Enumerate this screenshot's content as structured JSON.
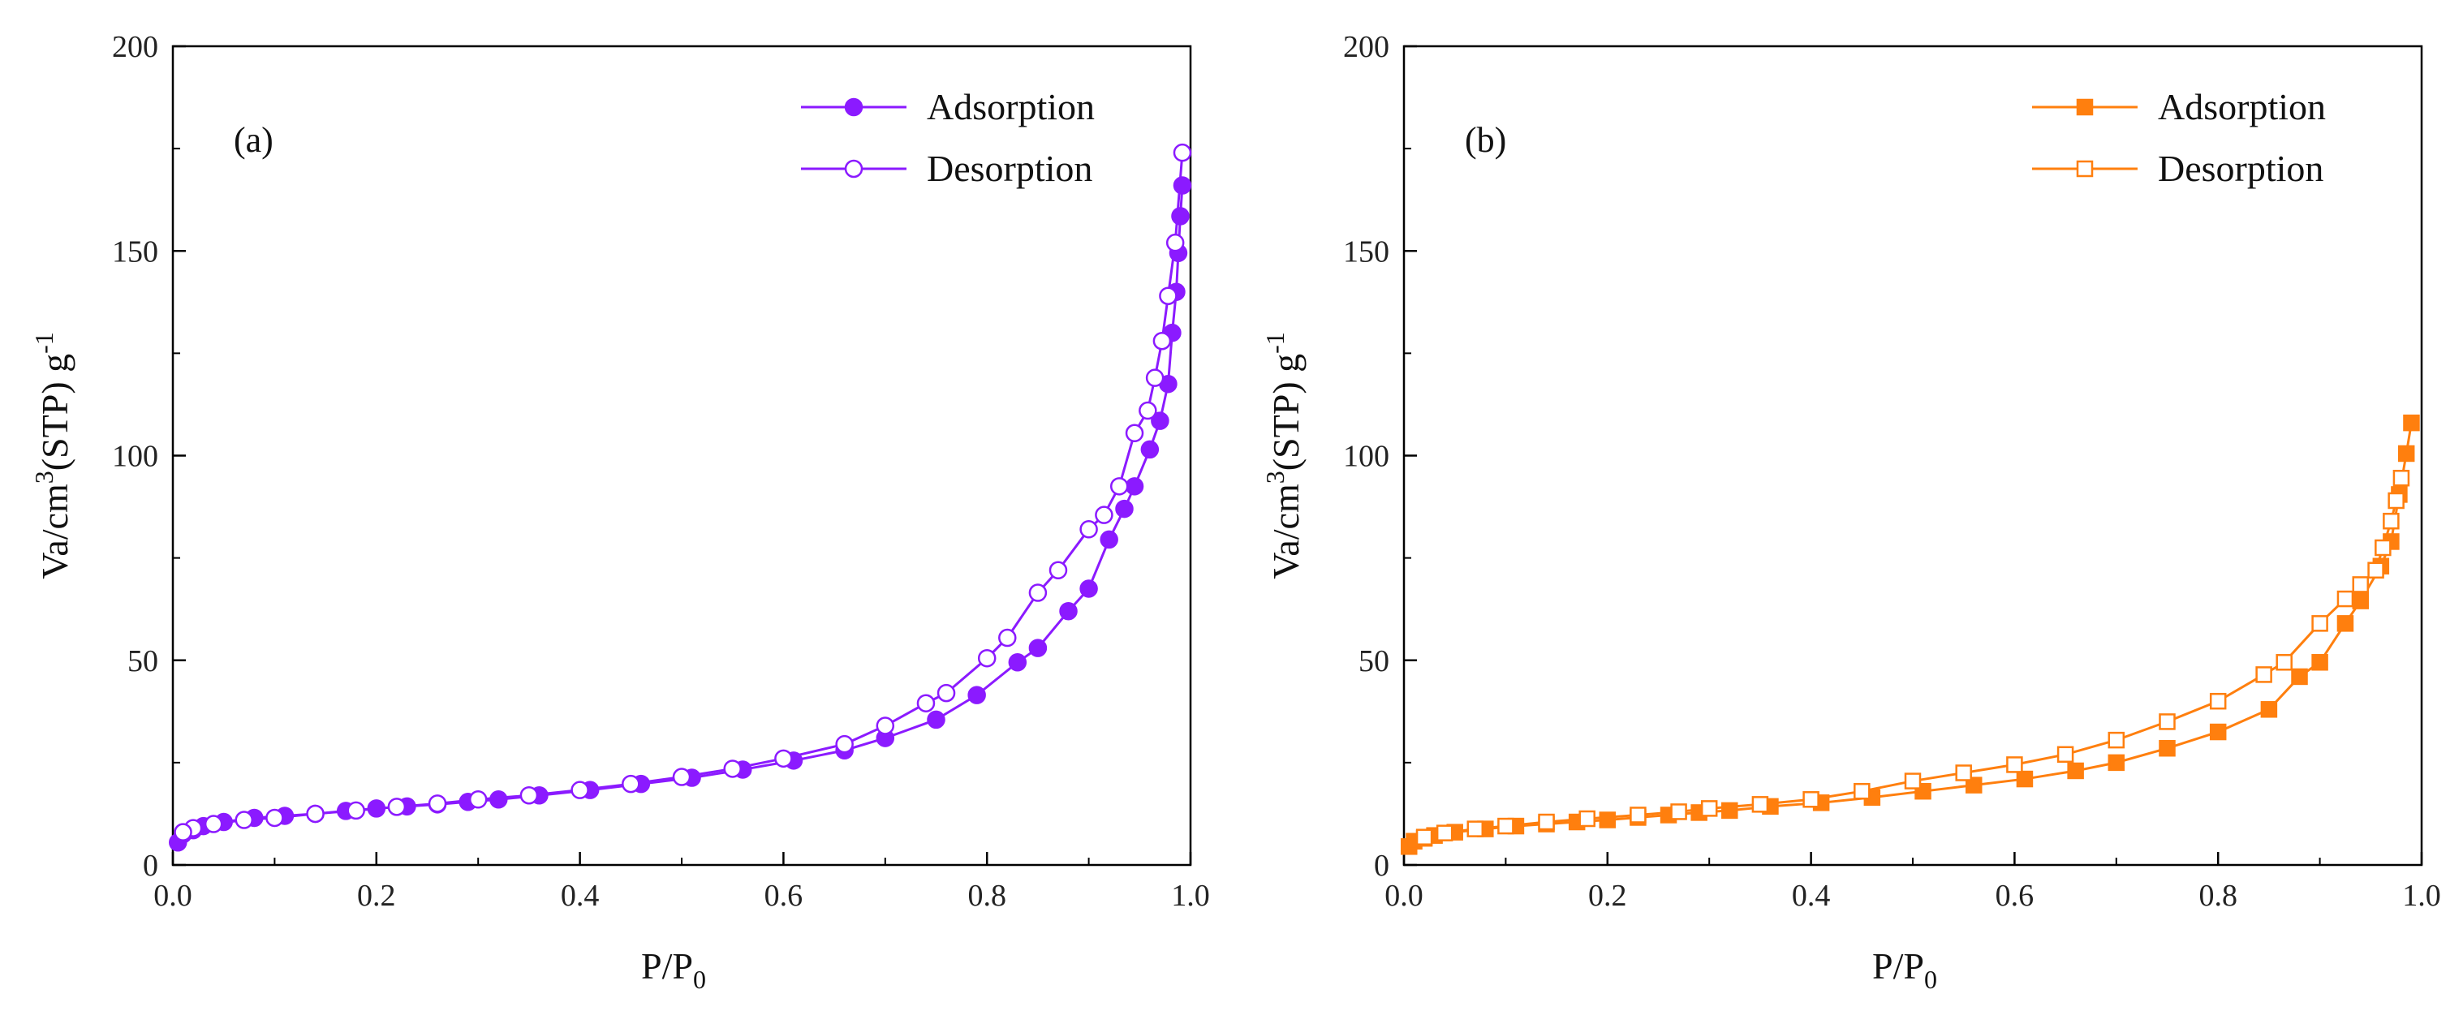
{
  "chart_data": [
    {
      "type": "line",
      "panel_label": "(a)",
      "color": "#8b1aff",
      "marker": "circle",
      "xlabel": "P/P",
      "xlabel_sub": "0",
      "ylabel": "Va/cm",
      "ylabel_sup1": "3",
      "ylabel_mid": "(STP) g",
      "ylabel_sup2": "-1",
      "xlim": [
        0,
        1.0
      ],
      "ylim": [
        0,
        200
      ],
      "xticks": [
        "0.0",
        "0.2",
        "0.4",
        "0.6",
        "0.8",
        "1.0"
      ],
      "yticks": [
        "0",
        "50",
        "100",
        "150",
        "200"
      ],
      "legend_position": "top-right",
      "series": [
        {
          "name": "Adsorption",
          "filled": true,
          "x": [
            0.005,
            0.01,
            0.02,
            0.03,
            0.05,
            0.08,
            0.11,
            0.14,
            0.17,
            0.2,
            0.23,
            0.26,
            0.29,
            0.32,
            0.36,
            0.41,
            0.46,
            0.51,
            0.56,
            0.61,
            0.66,
            0.7,
            0.75,
            0.79,
            0.83,
            0.85,
            0.88,
            0.9,
            0.92,
            0.935,
            0.945,
            0.96,
            0.97,
            0.978,
            0.982,
            0.986,
            0.988,
            0.99,
            0.992
          ],
          "y": [
            5.5,
            7.5,
            8.5,
            9.5,
            10.5,
            11.5,
            12,
            12.5,
            13.2,
            13.8,
            14.3,
            14.8,
            15.4,
            16,
            17,
            18.3,
            19.8,
            21.3,
            23.3,
            25.5,
            28,
            31,
            35.5,
            41.5,
            49.5,
            53,
            62,
            67.5,
            79.5,
            87,
            92.5,
            101.5,
            108.5,
            117.5,
            130,
            140,
            149.5,
            158.5,
            166
          ]
        },
        {
          "name": "Desorption",
          "filled": false,
          "x": [
            0.992,
            0.985,
            0.978,
            0.972,
            0.965,
            0.958,
            0.945,
            0.93,
            0.915,
            0.9,
            0.87,
            0.85,
            0.82,
            0.8,
            0.76,
            0.74,
            0.7,
            0.66,
            0.6,
            0.55,
            0.5,
            0.45,
            0.4,
            0.35,
            0.3,
            0.26,
            0.22,
            0.18,
            0.14,
            0.1,
            0.07,
            0.04,
            0.02,
            0.01
          ],
          "y": [
            174,
            152,
            139,
            128,
            119,
            111,
            105.5,
            92.5,
            85.5,
            82,
            72,
            66.5,
            55.5,
            50.5,
            42,
            39.5,
            34,
            29.5,
            26,
            23.5,
            21.5,
            19.8,
            18.3,
            17,
            16,
            15,
            14.2,
            13.3,
            12.5,
            11.5,
            11,
            10,
            9,
            8
          ]
        }
      ]
    },
    {
      "type": "line",
      "panel_label": "(b)",
      "color": "#ff7f0e",
      "marker": "square",
      "xlabel": "P/P",
      "xlabel_sub": "0",
      "ylabel": "Va/cm",
      "ylabel_sup1": "3",
      "ylabel_mid": "(STP) g",
      "ylabel_sup2": "-1",
      "xlim": [
        0,
        1.0
      ],
      "ylim": [
        0,
        200
      ],
      "xticks": [
        "0.0",
        "0.2",
        "0.4",
        "0.6",
        "0.8",
        "1.0"
      ],
      "yticks": [
        "0",
        "50",
        "100",
        "150",
        "200"
      ],
      "legend_position": "top-right",
      "series": [
        {
          "name": "Adsorption",
          "filled": true,
          "x": [
            0.005,
            0.01,
            0.02,
            0.03,
            0.05,
            0.08,
            0.11,
            0.14,
            0.17,
            0.2,
            0.23,
            0.26,
            0.29,
            0.32,
            0.36,
            0.41,
            0.46,
            0.51,
            0.56,
            0.61,
            0.66,
            0.7,
            0.75,
            0.8,
            0.85,
            0.88,
            0.9,
            0.925,
            0.94,
            0.96,
            0.97,
            0.978,
            0.985,
            0.99
          ],
          "y": [
            4.5,
            5.8,
            6.5,
            7.2,
            8,
            8.8,
            9.5,
            10,
            10.5,
            11,
            11.6,
            12.2,
            12.8,
            13.3,
            14.3,
            15.2,
            16.5,
            18,
            19.5,
            21,
            23,
            25,
            28.5,
            32.5,
            38,
            46,
            49.5,
            59,
            64.5,
            73,
            79,
            90.5,
            100.5,
            108
          ]
        },
        {
          "name": "Desorption",
          "filled": false,
          "x": [
            0.98,
            0.975,
            0.97,
            0.962,
            0.955,
            0.94,
            0.925,
            0.9,
            0.865,
            0.845,
            0.8,
            0.75,
            0.7,
            0.65,
            0.6,
            0.55,
            0.5,
            0.45,
            0.4,
            0.35,
            0.3,
            0.27,
            0.23,
            0.18,
            0.14,
            0.1,
            0.07,
            0.04,
            0.02
          ],
          "y": [
            94.5,
            89,
            84,
            77.5,
            72,
            68.5,
            65,
            59,
            49.5,
            46.5,
            40,
            35,
            30.5,
            27,
            24.5,
            22.5,
            20.5,
            18,
            16,
            14.8,
            13.8,
            13,
            12.2,
            11.3,
            10.5,
            9.5,
            8.8,
            7.8,
            6.8
          ]
        }
      ]
    }
  ]
}
